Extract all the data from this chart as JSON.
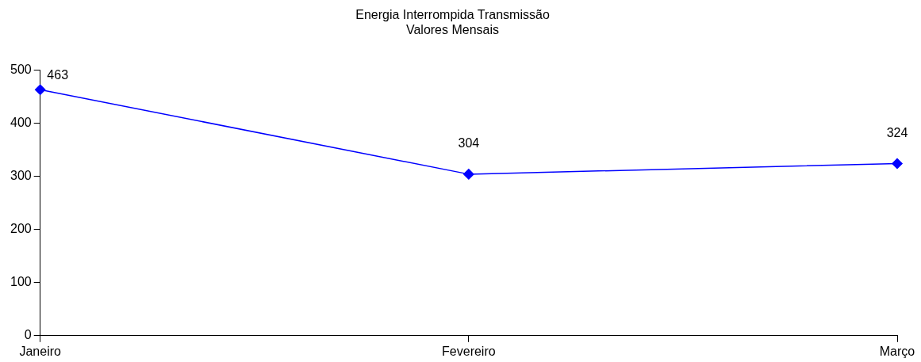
{
  "chart_data": {
    "type": "line",
    "title": "Energia Interrompida Transmissão\nValores Mensais",
    "categories": [
      "Janeiro",
      "Fevereiro",
      "Março"
    ],
    "series": [
      {
        "color": "#0000ff",
        "values": [
          463,
          304,
          324
        ]
      }
    ],
    "ylim": [
      0,
      500
    ],
    "yticks": [
      0,
      100,
      200,
      300,
      400,
      500
    ],
    "grid": false,
    "legend": false,
    "marker": "diamond",
    "line_style": "solid",
    "data_labels": true
  }
}
